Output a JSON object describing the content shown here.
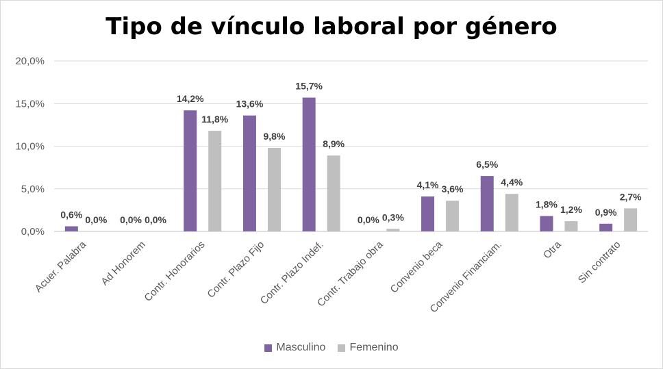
{
  "chart_data": {
    "type": "bar",
    "title": "Tipo de vínculo laboral por género",
    "categories": [
      "Acuer. Palabra",
      "Ad Honorem",
      "Contr. Honorarios",
      "Contr. Plazo Fijo",
      "Contr. Plazo Indef.",
      "Contr. Trabajo obra",
      "Convenio beca",
      "Convenio Financiam.",
      "Otra",
      "Sin contrato"
    ],
    "series": [
      {
        "name": "Masculino",
        "color": "#8064a2",
        "values": [
          0.6,
          0.0,
          14.2,
          13.6,
          15.7,
          0.0,
          4.1,
          6.5,
          1.8,
          0.9
        ],
        "labels": [
          "0,6%",
          "0,0%",
          "14,2%",
          "13,6%",
          "15,7%",
          "0,0%",
          "4,1%",
          "6,5%",
          "1,8%",
          "0,9%"
        ]
      },
      {
        "name": "Femenino",
        "color": "#bfbfbf",
        "values": [
          0.0,
          0.0,
          11.8,
          9.8,
          8.9,
          0.3,
          3.6,
          4.4,
          1.2,
          2.7
        ],
        "labels": [
          "0,0%",
          "0,0%",
          "11,8%",
          "9,8%",
          "8,9%",
          "0,3%",
          "3,6%",
          "4,4%",
          "1,2%",
          "2,7%"
        ]
      }
    ],
    "ylim": [
      0,
      20
    ],
    "yticks": [
      0,
      5,
      10,
      15,
      20
    ],
    "ytick_labels": [
      "0,0%",
      "5,0%",
      "10,0%",
      "15,0%",
      "20,0%"
    ],
    "grid": true,
    "legend_position": "bottom"
  }
}
